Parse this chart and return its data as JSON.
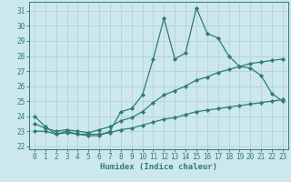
{
  "xlabel": "Humidex (Indice chaleur)",
  "xlim": [
    -0.5,
    23.5
  ],
  "ylim": [
    21.8,
    31.6
  ],
  "xticks": [
    0,
    1,
    2,
    3,
    4,
    5,
    6,
    7,
    8,
    9,
    10,
    11,
    12,
    13,
    14,
    15,
    16,
    17,
    18,
    19,
    20,
    21,
    22,
    23
  ],
  "yticks": [
    22,
    23,
    24,
    25,
    26,
    27,
    28,
    29,
    30,
    31
  ],
  "bg_color": "#cce8ec",
  "line_color": "#2e7d72",
  "grid_color": "#b8d4d8",
  "line1_x": [
    0,
    1,
    2,
    3,
    4,
    5,
    6,
    7,
    8,
    9,
    10,
    11,
    12,
    13,
    14,
    15,
    16,
    17,
    18,
    19,
    20,
    21,
    22,
    23
  ],
  "line1_y": [
    24.0,
    23.3,
    22.8,
    23.0,
    22.8,
    22.7,
    22.7,
    23.0,
    24.3,
    24.5,
    25.4,
    27.8,
    30.5,
    27.8,
    28.2,
    31.2,
    29.5,
    29.2,
    28.0,
    27.3,
    27.2,
    26.7,
    25.5,
    25.0
  ],
  "line2_x": [
    0,
    1,
    2,
    3,
    4,
    5,
    6,
    7,
    8,
    9,
    10,
    11,
    12,
    13,
    14,
    15,
    16,
    17,
    18,
    19,
    20,
    21,
    22,
    23
  ],
  "line2_y": [
    23.5,
    23.2,
    23.0,
    23.1,
    23.0,
    22.9,
    23.1,
    23.3,
    23.7,
    23.9,
    24.3,
    24.9,
    25.4,
    25.7,
    26.0,
    26.4,
    26.6,
    26.9,
    27.1,
    27.3,
    27.5,
    27.6,
    27.7,
    27.8
  ],
  "line3_x": [
    0,
    1,
    2,
    3,
    4,
    5,
    6,
    7,
    8,
    9,
    10,
    11,
    12,
    13,
    14,
    15,
    16,
    17,
    18,
    19,
    20,
    21,
    22,
    23
  ],
  "line3_y": [
    23.0,
    23.0,
    22.8,
    22.9,
    22.8,
    22.8,
    22.8,
    22.9,
    23.1,
    23.2,
    23.4,
    23.6,
    23.8,
    23.9,
    24.1,
    24.3,
    24.4,
    24.5,
    24.6,
    24.7,
    24.8,
    24.9,
    25.0,
    25.1
  ],
  "tick_fontsize": 5.5,
  "xlabel_fontsize": 6.5,
  "marker_size": 2.2,
  "linewidth": 0.9
}
